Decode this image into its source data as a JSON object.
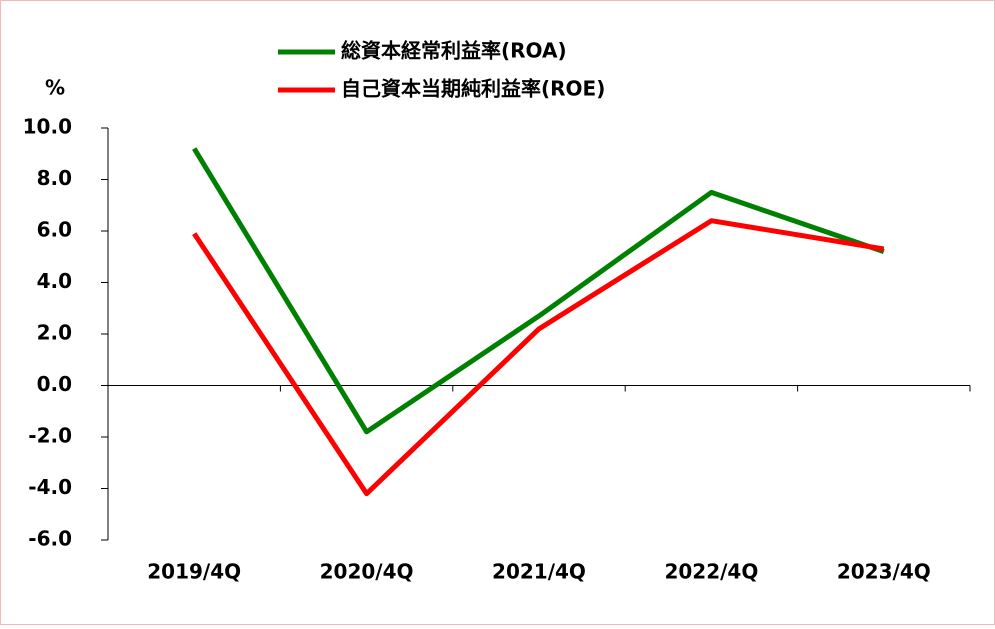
{
  "chart_data": {
    "type": "line",
    "y_unit": "%",
    "categories": [
      "2019/4Q",
      "2020/4Q",
      "2021/4Q",
      "2022/4Q",
      "2023/4Q"
    ],
    "series": [
      {
        "name": "総資本経常利益率(ROA)",
        "color": "#008000",
        "values": [
          9.2,
          -1.8,
          2.7,
          7.5,
          5.2
        ]
      },
      {
        "name": "自己資本当期純利益率(ROE)",
        "color": "#ff0000",
        "values": [
          5.9,
          -4.2,
          2.2,
          6.4,
          5.3
        ]
      }
    ],
    "ylim": [
      -6,
      10
    ],
    "yticks": [
      {
        "value": -6,
        "label": "-6.0"
      },
      {
        "value": -4,
        "label": "-4.0"
      },
      {
        "value": -2,
        "label": "-2.0"
      },
      {
        "value": 0,
        "label": "0.0"
      },
      {
        "value": 2,
        "label": "2.0"
      },
      {
        "value": 4,
        "label": "4.0"
      },
      {
        "value": 6,
        "label": "6.0"
      },
      {
        "value": 8,
        "label": "8.0"
      },
      {
        "value": 10,
        "label": "10.0"
      }
    ],
    "legend": "top"
  }
}
